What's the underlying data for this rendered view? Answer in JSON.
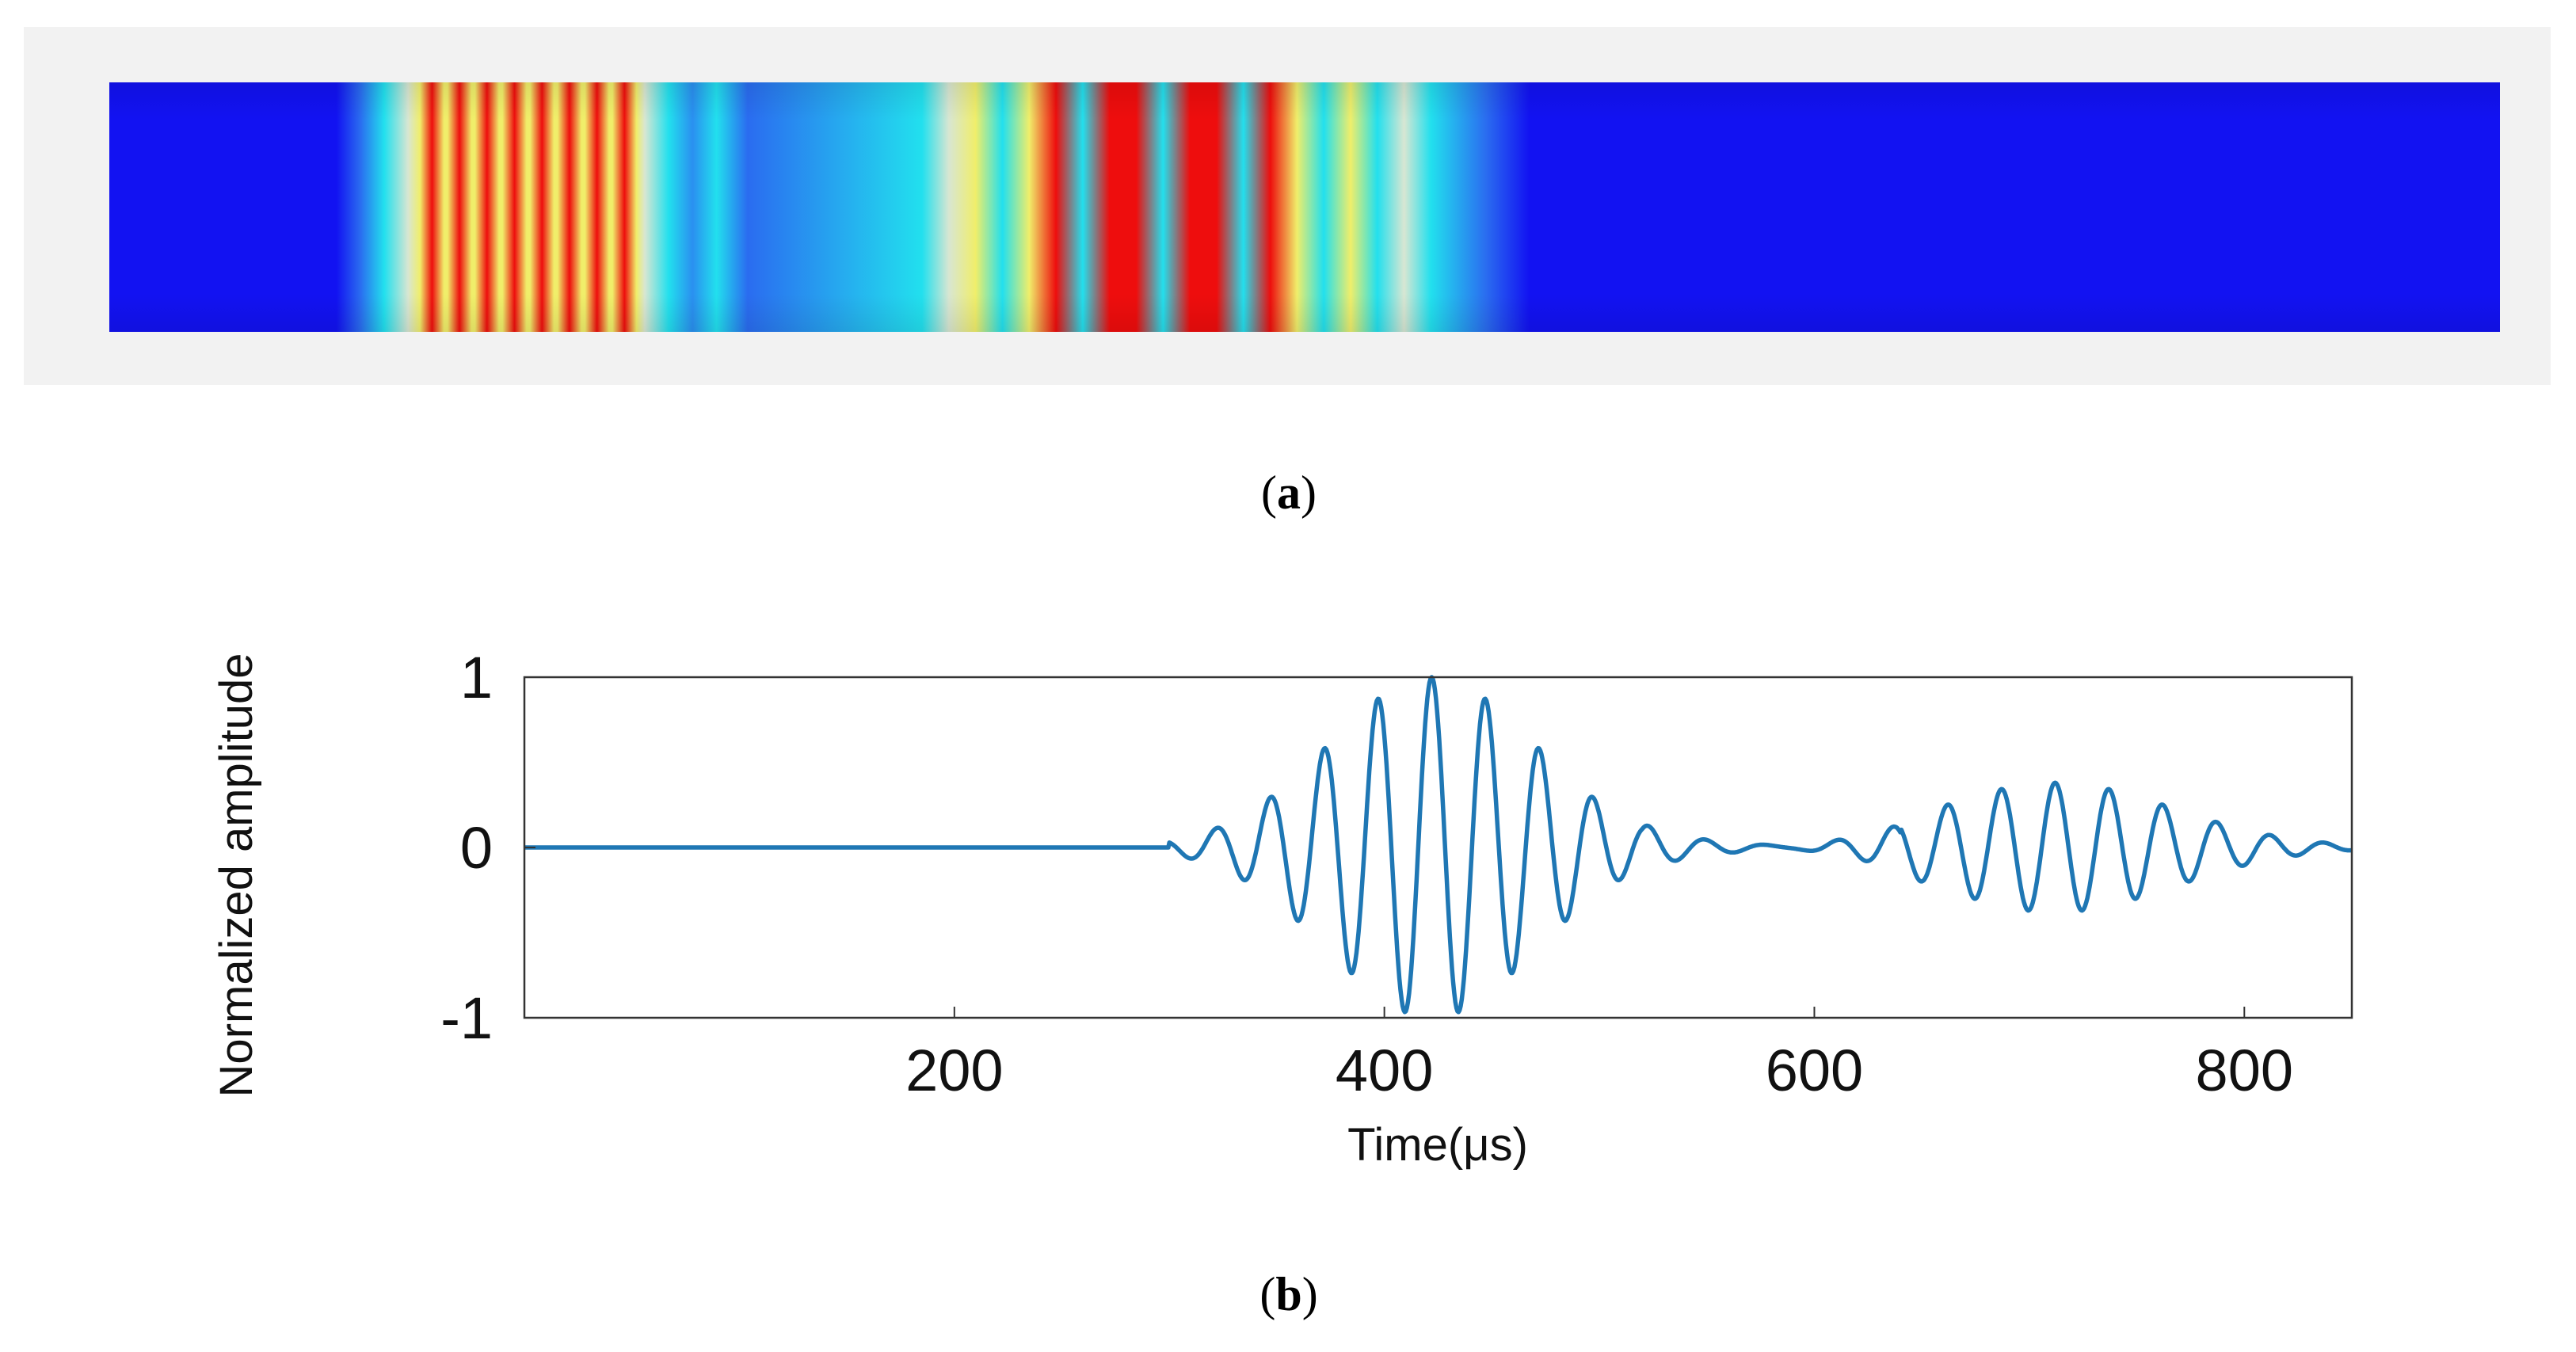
{
  "panels": {
    "a": {
      "label_letter": "a"
    },
    "b": {
      "label_letter": "b"
    }
  },
  "colors": {
    "rod_base": "#1212f2",
    "cyan": "#22e0ee",
    "pale": "#d8e6d2",
    "yellow": "#f0ee6a",
    "red": "#ee0d0d",
    "line": "#1f77b4",
    "panel_bg": "#f2f2f2"
  },
  "chart_data": {
    "type": "line",
    "title": "",
    "xlabel": "Time(μs)",
    "ylabel": "Normalized amplitude",
    "xlim": [
      0,
      850
    ],
    "ylim": [
      -1,
      1
    ],
    "xticks": [
      200,
      400,
      600,
      800
    ],
    "yticks": [
      1,
      0,
      -1
    ],
    "grid": false,
    "series": [
      {
        "description_packets": [
          {
            "center_time": 422,
            "period": 25,
            "peak_amplitude": 1.0,
            "sigma": 48,
            "start": 300
          },
          {
            "center_time": 712,
            "period": 25,
            "peak_amplitude": 0.38,
            "sigma": 55,
            "start": 520
          }
        ],
        "baseline_ripple": {
          "period": 25,
          "amplitude": 0.03,
          "range": [
            520,
            640
          ]
        }
      }
    ]
  }
}
